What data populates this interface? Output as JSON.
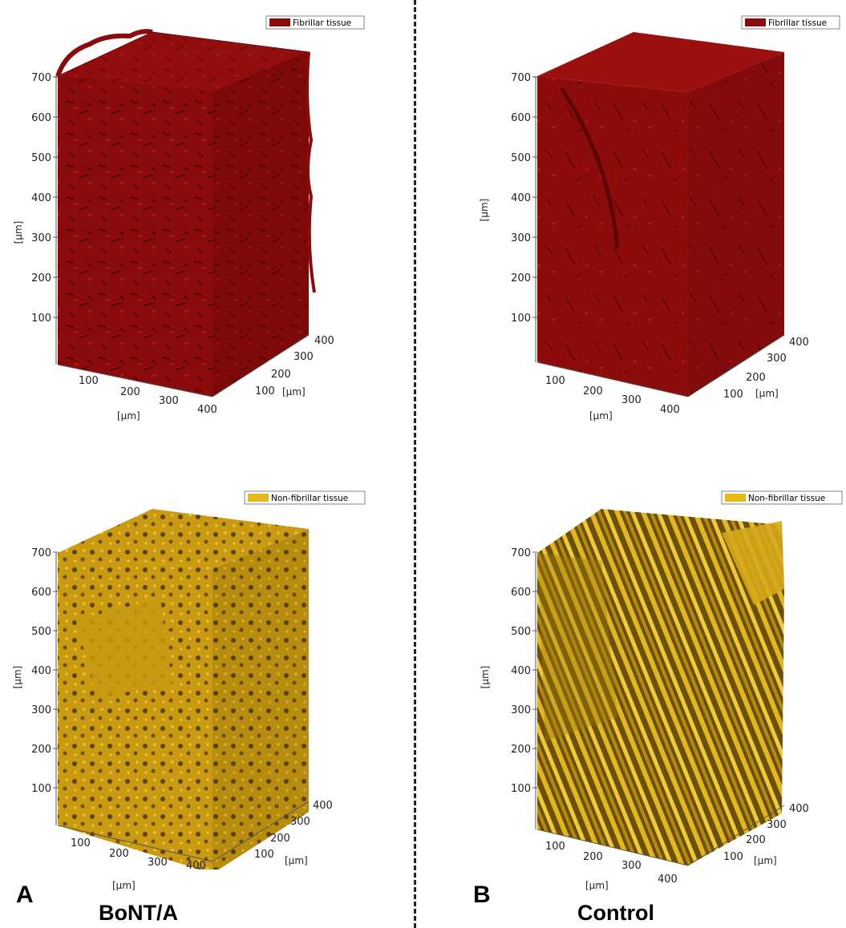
{
  "panels": {
    "a_top": {
      "legend": "Fibrillar tissue",
      "legend_color": "#8b0a0a",
      "tissue_color": "#8b0a0a",
      "z_ticks": [
        "700",
        "600",
        "500",
        "400",
        "300",
        "200",
        "100"
      ],
      "x_ticks": [
        "100",
        "200",
        "300",
        "400"
      ],
      "y_ticks": [
        "100",
        "200",
        "300",
        "400"
      ],
      "z_unit": "[μm]",
      "x_unit": "[μm]",
      "y_unit": "[μm]"
    },
    "b_top": {
      "legend": "Fibrillar tissue",
      "legend_color": "#8b0a0a",
      "tissue_color": "#8b0a0a",
      "z_ticks": [
        "700",
        "600",
        "500",
        "400",
        "300",
        "200",
        "100"
      ],
      "x_ticks": [
        "100",
        "200",
        "300",
        "400"
      ],
      "y_ticks": [
        "100",
        "200",
        "300",
        "400"
      ],
      "z_unit": "[μm]",
      "x_unit": "[μm]",
      "y_unit": "[μm]"
    },
    "a_bottom": {
      "legend": "Non-fibrillar tissue",
      "legend_color": "#e6b81a",
      "tissue_color": "#d4a514",
      "z_ticks": [
        "700",
        "600",
        "500",
        "400",
        "300",
        "200",
        "100"
      ],
      "x_ticks": [
        "100",
        "200",
        "300",
        "400"
      ],
      "y_ticks": [
        "100",
        "200",
        "300",
        "400"
      ],
      "z_unit": "[μm]",
      "x_unit": "[μm]",
      "y_unit": "[μm]"
    },
    "b_bottom": {
      "legend": "Non-fibrillar tissue",
      "legend_color": "#e6b81a",
      "tissue_color": "#d4a514",
      "z_ticks": [
        "700",
        "600",
        "500",
        "400",
        "300",
        "200",
        "100"
      ],
      "x_ticks": [
        "100",
        "200",
        "300",
        "400"
      ],
      "y_ticks": [
        "100",
        "200",
        "300",
        "400"
      ],
      "z_unit": "[μm]",
      "x_unit": "[μm]",
      "y_unit": "[μm]"
    }
  },
  "labels": {
    "panel_a": "A",
    "panel_b": "B",
    "caption_a": "BoNT/A",
    "caption_b": "Control"
  }
}
